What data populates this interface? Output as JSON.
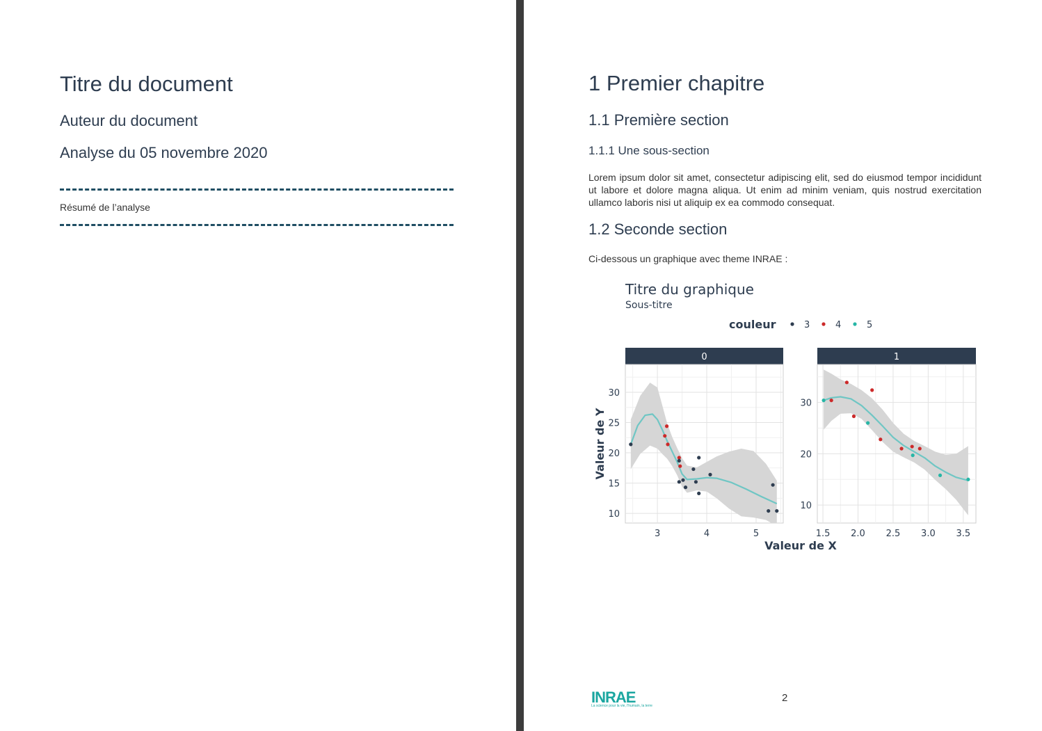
{
  "left_page": {
    "title": "Titre du document",
    "author": "Auteur du document",
    "date": "Analyse du 05 novembre 2020",
    "abstract": "Résumé de l’analyse"
  },
  "right_page": {
    "chapter": "1 Premier chapitre",
    "section1": "1.1 Première section",
    "subsection": "1.1.1 Une sous-section",
    "lorem": "Lorem ipsum dolor sit amet, consectetur adipiscing elit, sed do eiusmod tempor incididunt ut labore et dolore magna aliqua. Ut enim ad minim veniam, quis nostrud exercitation ullamco laboris nisi ut aliquip ex ea commodo consequat.",
    "section2": "1.2 Seconde section",
    "chart_intro": "Ci-dessous un graphique avec theme INRAE :",
    "page_number": "2",
    "logo": "INRAE",
    "logo_tagline": "La science pour la vie, l'humain, la terre"
  },
  "colors": {
    "navy": "#2e3d50",
    "red": "#cc2a2a",
    "teal": "#27b6a6",
    "smooth": "#6fc6c4",
    "band": "#d6d6d6",
    "strip": "#2e3d50"
  },
  "chart_data": {
    "type": "scatter",
    "title": "Titre du graphique",
    "subtitle": "Sous-titre",
    "xlabel": "Valeur de X",
    "ylabel": "Valeur de Y",
    "legend": {
      "title": "couleur",
      "position": "top",
      "entries": [
        {
          "label": "3",
          "color": "#2e3d50"
        },
        {
          "label": "4",
          "color": "#cc2a2a"
        },
        {
          "label": "5",
          "color": "#27b6a6"
        }
      ]
    },
    "grid": true,
    "facets": [
      {
        "label": "0",
        "xlim": [
          2.35,
          5.55
        ],
        "ylim": [
          8.4,
          34.6
        ],
        "xticks": [
          3,
          4,
          5
        ],
        "yticks": [
          10,
          15,
          20,
          25,
          30
        ],
        "points": [
          {
            "x": 2.46,
            "y": 21.4,
            "c": "3"
          },
          {
            "x": 3.15,
            "y": 22.8,
            "c": "4"
          },
          {
            "x": 3.19,
            "y": 24.4,
            "c": "4"
          },
          {
            "x": 3.21,
            "y": 21.4,
            "c": "4"
          },
          {
            "x": 3.44,
            "y": 19.2,
            "c": "4"
          },
          {
            "x": 3.44,
            "y": 18.7,
            "c": "3"
          },
          {
            "x": 3.46,
            "y": 17.8,
            "c": "4"
          },
          {
            "x": 3.44,
            "y": 15.2,
            "c": "3"
          },
          {
            "x": 3.52,
            "y": 15.5,
            "c": "3"
          },
          {
            "x": 3.57,
            "y": 14.3,
            "c": "3"
          },
          {
            "x": 3.73,
            "y": 17.3,
            "c": "3"
          },
          {
            "x": 3.78,
            "y": 15.2,
            "c": "3"
          },
          {
            "x": 3.84,
            "y": 19.2,
            "c": "3"
          },
          {
            "x": 3.84,
            "y": 13.3,
            "c": "3"
          },
          {
            "x": 4.07,
            "y": 16.4,
            "c": "3"
          },
          {
            "x": 5.25,
            "y": 10.4,
            "c": "3"
          },
          {
            "x": 5.34,
            "y": 14.7,
            "c": "3"
          },
          {
            "x": 5.42,
            "y": 10.4,
            "c": "3"
          }
        ],
        "smooth": [
          {
            "x": 2.46,
            "y": 21.4
          },
          {
            "x": 2.6,
            "y": 24.5
          },
          {
            "x": 2.75,
            "y": 26.2
          },
          {
            "x": 2.9,
            "y": 26.4
          },
          {
            "x": 3.0,
            "y": 25.5
          },
          {
            "x": 3.1,
            "y": 23.8
          },
          {
            "x": 3.2,
            "y": 21.9
          },
          {
            "x": 3.3,
            "y": 20.2
          },
          {
            "x": 3.4,
            "y": 18.5
          },
          {
            "x": 3.5,
            "y": 16.5
          },
          {
            "x": 3.6,
            "y": 15.6
          },
          {
            "x": 3.8,
            "y": 15.7
          },
          {
            "x": 4.0,
            "y": 15.9
          },
          {
            "x": 4.2,
            "y": 15.8
          },
          {
            "x": 4.5,
            "y": 15.1
          },
          {
            "x": 4.8,
            "y": 14.0
          },
          {
            "x": 5.1,
            "y": 12.8
          },
          {
            "x": 5.42,
            "y": 11.6
          }
        ],
        "band_upper": [
          {
            "x": 2.46,
            "y": 25.5
          },
          {
            "x": 2.65,
            "y": 29.4
          },
          {
            "x": 2.85,
            "y": 31.6
          },
          {
            "x": 3.0,
            "y": 30.8
          },
          {
            "x": 3.1,
            "y": 27.8
          },
          {
            "x": 3.2,
            "y": 24.8
          },
          {
            "x": 3.3,
            "y": 22.6
          },
          {
            "x": 3.4,
            "y": 20.8
          },
          {
            "x": 3.5,
            "y": 19.1
          },
          {
            "x": 3.6,
            "y": 17.9
          },
          {
            "x": 3.8,
            "y": 17.6
          },
          {
            "x": 4.0,
            "y": 18.5
          },
          {
            "x": 4.2,
            "y": 19.4
          },
          {
            "x": 4.45,
            "y": 20.2
          },
          {
            "x": 4.7,
            "y": 20.7
          },
          {
            "x": 4.95,
            "y": 20.3
          },
          {
            "x": 5.2,
            "y": 18.2
          },
          {
            "x": 5.42,
            "y": 15.4
          }
        ],
        "band_lower": [
          {
            "x": 2.46,
            "y": 17.3
          },
          {
            "x": 2.65,
            "y": 19.8
          },
          {
            "x": 2.85,
            "y": 21.2
          },
          {
            "x": 3.0,
            "y": 20.7
          },
          {
            "x": 3.1,
            "y": 19.8
          },
          {
            "x": 3.2,
            "y": 19.0
          },
          {
            "x": 3.3,
            "y": 17.8
          },
          {
            "x": 3.4,
            "y": 16.3
          },
          {
            "x": 3.5,
            "y": 14.4
          },
          {
            "x": 3.6,
            "y": 13.4
          },
          {
            "x": 3.8,
            "y": 13.8
          },
          {
            "x": 4.0,
            "y": 13.6
          },
          {
            "x": 4.2,
            "y": 12.5
          },
          {
            "x": 4.45,
            "y": 10.8
          },
          {
            "x": 4.7,
            "y": 9.5
          },
          {
            "x": 4.95,
            "y": 9.3
          },
          {
            "x": 5.2,
            "y": 8.9
          },
          {
            "x": 5.42,
            "y": 7.9
          }
        ]
      },
      {
        "label": "1",
        "xlim": [
          1.42,
          3.68
        ],
        "ylim": [
          6.5,
          37.4
        ],
        "xticks": [
          1.5,
          2.0,
          2.5,
          3.0,
          3.5
        ],
        "xtick_labels": [
          "1.5",
          "2.0",
          "2.5",
          "3.0",
          "3.5"
        ],
        "yticks": [
          10,
          20,
          30
        ],
        "points": [
          {
            "x": 1.51,
            "y": 30.4,
            "c": "5"
          },
          {
            "x": 1.62,
            "y": 30.4,
            "c": "4"
          },
          {
            "x": 1.84,
            "y": 33.9,
            "c": "4"
          },
          {
            "x": 1.94,
            "y": 27.3,
            "c": "4"
          },
          {
            "x": 2.14,
            "y": 26.0,
            "c": "5"
          },
          {
            "x": 2.2,
            "y": 32.4,
            "c": "4"
          },
          {
            "x": 2.32,
            "y": 22.8,
            "c": "4"
          },
          {
            "x": 2.62,
            "y": 21.0,
            "c": "4"
          },
          {
            "x": 2.77,
            "y": 21.4,
            "c": "4"
          },
          {
            "x": 2.78,
            "y": 19.7,
            "c": "5"
          },
          {
            "x": 2.88,
            "y": 21.0,
            "c": "4"
          },
          {
            "x": 3.17,
            "y": 15.8,
            "c": "5"
          },
          {
            "x": 3.57,
            "y": 15.0,
            "c": "5"
          }
        ],
        "smooth": [
          {
            "x": 1.51,
            "y": 30.4
          },
          {
            "x": 1.62,
            "y": 30.9
          },
          {
            "x": 1.75,
            "y": 31.1
          },
          {
            "x": 1.9,
            "y": 30.7
          },
          {
            "x": 2.05,
            "y": 29.4
          },
          {
            "x": 2.2,
            "y": 27.5
          },
          {
            "x": 2.35,
            "y": 25.4
          },
          {
            "x": 2.5,
            "y": 23.2
          },
          {
            "x": 2.65,
            "y": 21.6
          },
          {
            "x": 2.8,
            "y": 20.4
          },
          {
            "x": 2.95,
            "y": 19.2
          },
          {
            "x": 3.1,
            "y": 17.6
          },
          {
            "x": 3.25,
            "y": 16.4
          },
          {
            "x": 3.4,
            "y": 15.4
          },
          {
            "x": 3.57,
            "y": 14.8
          }
        ],
        "band_upper": [
          {
            "x": 1.51,
            "y": 36.4
          },
          {
            "x": 1.62,
            "y": 35.6
          },
          {
            "x": 1.75,
            "y": 34.5
          },
          {
            "x": 1.9,
            "y": 33.6
          },
          {
            "x": 2.05,
            "y": 32.4
          },
          {
            "x": 2.2,
            "y": 30.8
          },
          {
            "x": 2.35,
            "y": 28.6
          },
          {
            "x": 2.5,
            "y": 26.0
          },
          {
            "x": 2.65,
            "y": 23.9
          },
          {
            "x": 2.8,
            "y": 22.5
          },
          {
            "x": 2.95,
            "y": 21.5
          },
          {
            "x": 3.1,
            "y": 20.4
          },
          {
            "x": 3.25,
            "y": 19.8
          },
          {
            "x": 3.4,
            "y": 20.0
          },
          {
            "x": 3.57,
            "y": 21.5
          }
        ],
        "band_lower": [
          {
            "x": 1.51,
            "y": 24.7
          },
          {
            "x": 1.62,
            "y": 26.4
          },
          {
            "x": 1.75,
            "y": 27.8
          },
          {
            "x": 1.9,
            "y": 27.9
          },
          {
            "x": 2.05,
            "y": 26.8
          },
          {
            "x": 2.2,
            "y": 24.6
          },
          {
            "x": 2.35,
            "y": 22.3
          },
          {
            "x": 2.5,
            "y": 20.4
          },
          {
            "x": 2.65,
            "y": 19.3
          },
          {
            "x": 2.8,
            "y": 18.3
          },
          {
            "x": 2.95,
            "y": 16.9
          },
          {
            "x": 3.1,
            "y": 14.9
          },
          {
            "x": 3.25,
            "y": 13.1
          },
          {
            "x": 3.4,
            "y": 11.0
          },
          {
            "x": 3.57,
            "y": 8.0
          }
        ]
      }
    ]
  }
}
